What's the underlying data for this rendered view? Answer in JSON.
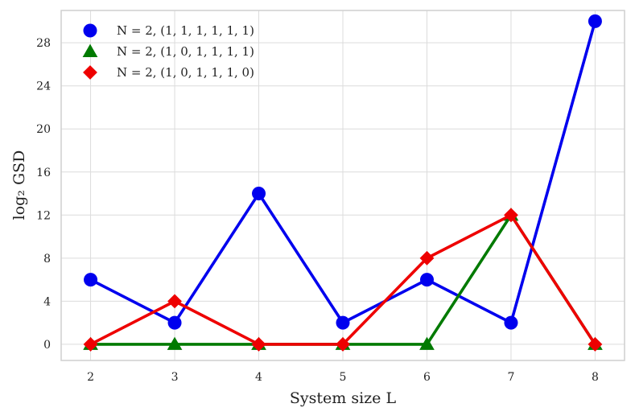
{
  "chart_data": {
    "type": "line",
    "xlabel": "System size L",
    "ylabel": "log₂ GSD",
    "x": [
      2,
      3,
      4,
      5,
      6,
      7,
      8
    ],
    "xlim": [
      1.65,
      8.35
    ],
    "ylim": [
      -1.5,
      31.0
    ],
    "xticks": [
      "2",
      "3",
      "4",
      "5",
      "6",
      "7",
      "8"
    ],
    "yticks": [
      "0",
      "4",
      "8",
      "12",
      "16",
      "20",
      "24",
      "28"
    ],
    "grid": true,
    "legend_position": "top-left",
    "series": [
      {
        "name": "N = 2, (1, 1, 1, 1, 1, 1)",
        "marker": "circle",
        "color": "#0000ee",
        "values": [
          6,
          2,
          14,
          2,
          6,
          2,
          30
        ]
      },
      {
        "name": "N = 2, (1, 0, 1, 1, 1, 1)",
        "marker": "triangle",
        "color": "#007a00",
        "values": [
          0,
          0,
          0,
          0,
          0,
          12,
          0
        ]
      },
      {
        "name": "N = 2, (1, 0, 1, 1, 1, 0)",
        "marker": "diamond",
        "color": "#ee0000",
        "values": [
          0,
          4,
          0,
          0,
          8,
          12,
          0
        ]
      }
    ]
  }
}
